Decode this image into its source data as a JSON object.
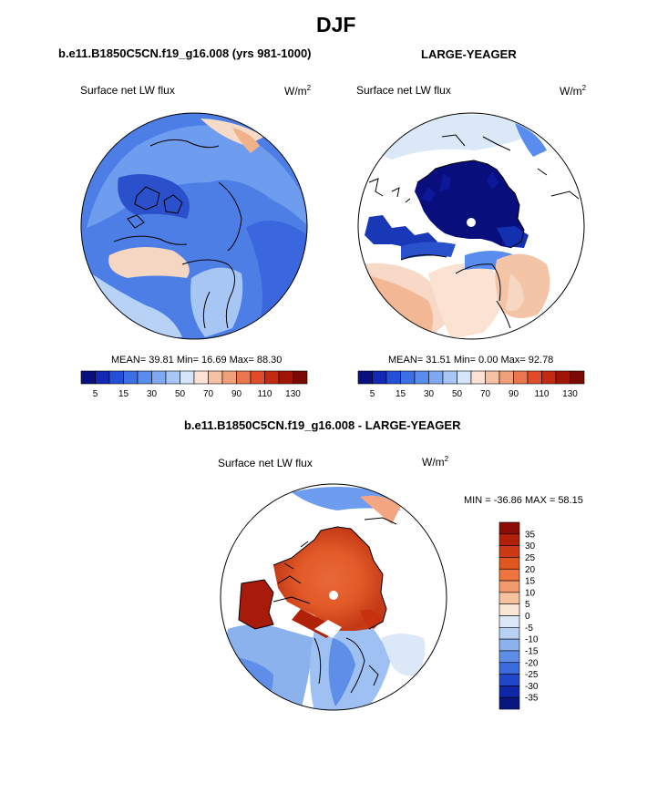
{
  "title": "DJF",
  "panels": [
    {
      "heading": "b.e11.B1850C5CN.f19_g16.008 (yrs 981-1000)",
      "field": "Surface net LW flux",
      "units_base": "W/m",
      "units_exp": "2",
      "stats": "MEAN=  39.81  Min=  16.69  Max=  88.30"
    },
    {
      "heading": "LARGE-YEAGER",
      "field": "Surface net LW flux",
      "units_base": "W/m",
      "units_exp": "2",
      "stats": "MEAN=  31.51  Min=   0.00  Max=  92.78"
    },
    {
      "heading": "b.e11.B1850C5CN.f19_g16.008 - LARGE-YEAGER",
      "field": "Surface net LW flux",
      "units_base": "W/m",
      "units_exp": "2",
      "stats": "MIN = -36.86 MAX =  58.15"
    }
  ],
  "colorbar_abs": {
    "labels": [
      "5",
      "15",
      "30",
      "50",
      "70",
      "90",
      "110",
      "130"
    ],
    "colors": [
      "#08107f",
      "#1428b8",
      "#2450d8",
      "#3c6ee6",
      "#5a8cee",
      "#7fa8f0",
      "#a8c6f4",
      "#d6e6f8",
      "#fbe2d2",
      "#f6c2a4",
      "#f1a07a",
      "#ea7650",
      "#e04c2a",
      "#c42a12",
      "#a01408",
      "#7a0a04"
    ]
  },
  "colorbar_diff": {
    "labels": [
      "35",
      "30",
      "25",
      "20",
      "15",
      "10",
      "5",
      "0",
      "-5",
      "-10",
      "-15",
      "-20",
      "-25",
      "-30",
      "-35"
    ],
    "colors": [
      "#8a0c04",
      "#b0200a",
      "#cc3a14",
      "#e0561f",
      "#ee7440",
      "#f29a6c",
      "#f6c2a0",
      "#fae6d4",
      "#dce8f8",
      "#b8d0f4",
      "#8cb2ee",
      "#5e8ee8",
      "#3a6ce0",
      "#2048c8",
      "#1028a8",
      "#081680"
    ]
  }
}
